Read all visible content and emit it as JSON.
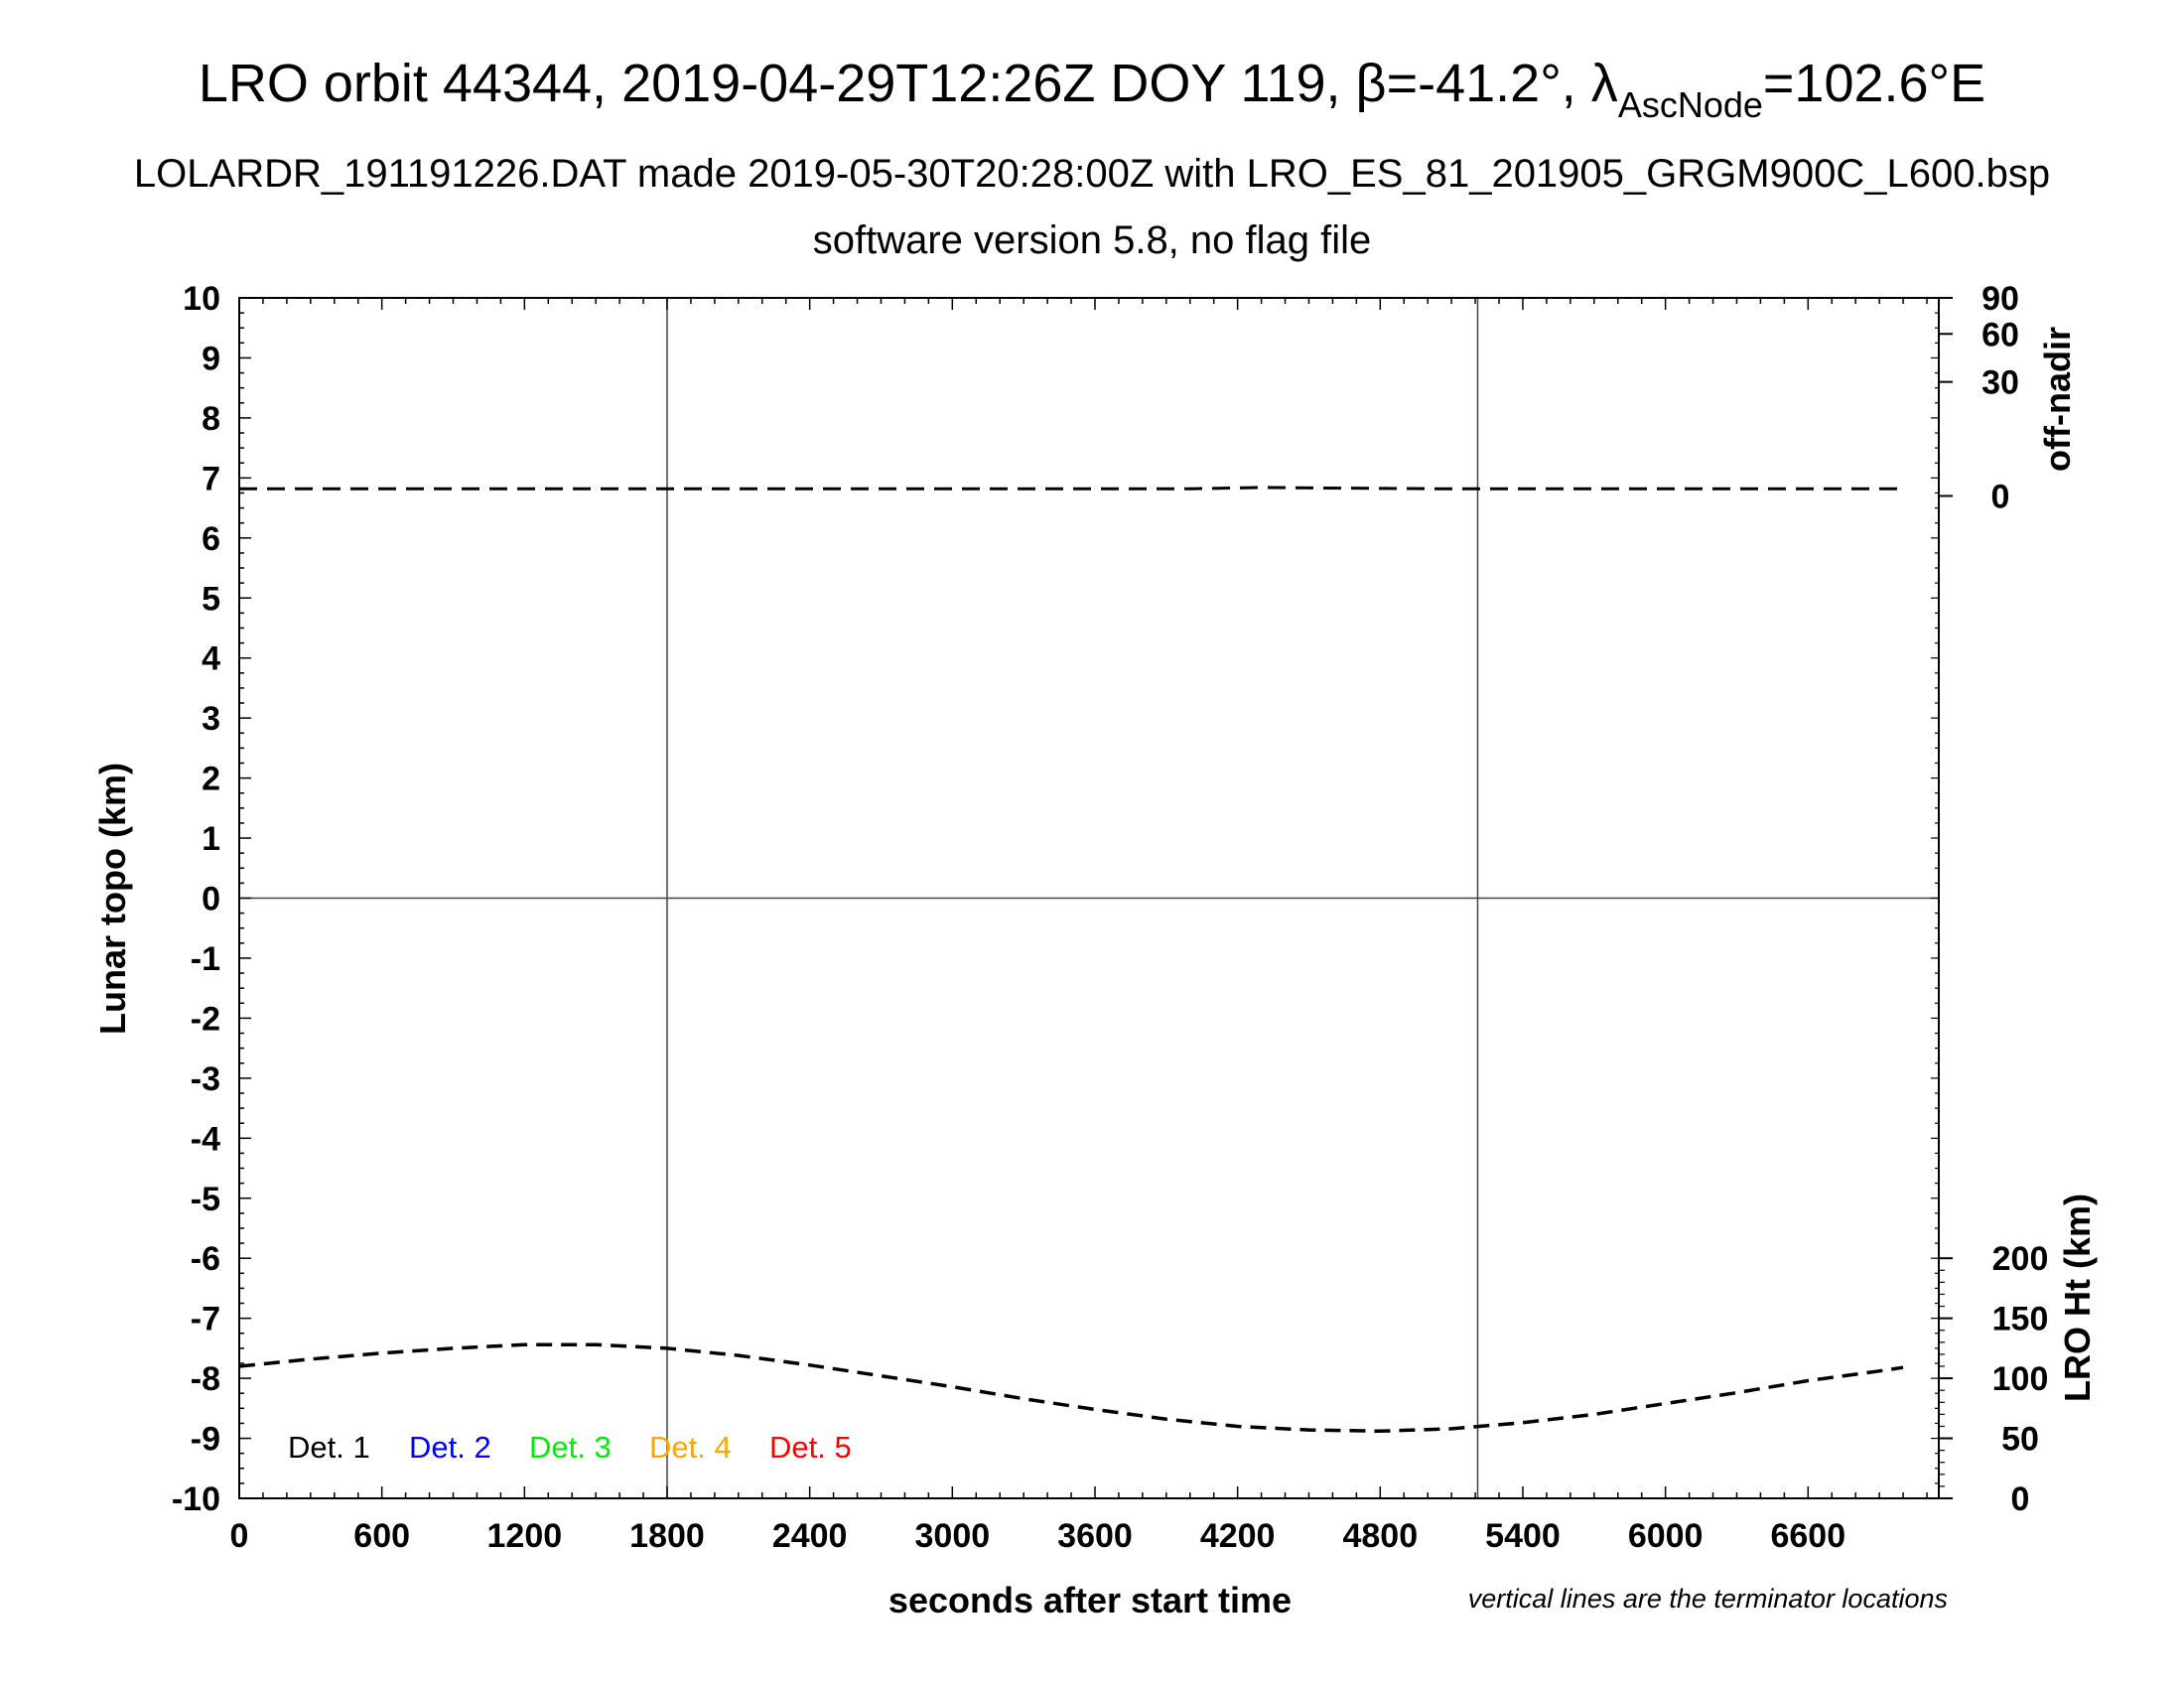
{
  "header": {
    "title_pre": "LRO orbit 44344, 2019-04-29T12:26Z DOY 119, β=-41.2°, λ",
    "title_sub": "AscNode",
    "title_post": "=102.6°E",
    "subtitle": "LOLARDR_191191226.DAT made 2019-05-30T20:28:00Z with LRO_ES_81_201905_GRGM900C_L600.bsp",
    "subtitle2": "software version 5.8, no flag file"
  },
  "chart_data": {
    "type": "line",
    "xlabel": "seconds after start time",
    "ylabel_left": "Lunar topo (km)",
    "ylabel_right_top": "off-nadir",
    "ylabel_right_bottom": "LRO Ht (km)",
    "note": "vertical lines are the terminator locations",
    "xlim": [
      0,
      7150
    ],
    "ylim_left": [
      -10,
      10
    ],
    "x_ticks": [
      "0",
      "600",
      "1200",
      "1800",
      "2400",
      "3000",
      "3600",
      "4200",
      "4800",
      "5400",
      "6000",
      "6600"
    ],
    "x_tick_values": [
      0,
      600,
      1200,
      1800,
      2400,
      3000,
      3600,
      4200,
      4800,
      5400,
      6000,
      6600
    ],
    "y_ticks_left": [
      "10",
      "9",
      "8",
      "7",
      "6",
      "5",
      "4",
      "3",
      "2",
      "1",
      "0",
      "-1",
      "-2",
      "-3",
      "-4",
      "-5",
      "-6",
      "-7",
      "-8",
      "-9",
      "-10"
    ],
    "y_tick_values_left": [
      10,
      9,
      8,
      7,
      6,
      5,
      4,
      3,
      2,
      1,
      0,
      -1,
      -2,
      -3,
      -4,
      -5,
      -6,
      -7,
      -8,
      -9,
      -10
    ],
    "right_top_axis": {
      "ticks": [
        "90",
        "60",
        "30",
        "0"
      ],
      "tick_topo": [
        10,
        9.4,
        8.6,
        6.7
      ]
    },
    "right_bottom_axis": {
      "ticks": [
        "200",
        "150",
        "100",
        "50",
        "0"
      ],
      "values": [
        200,
        150,
        100,
        50,
        0
      ],
      "range_km": [
        0,
        300
      ]
    },
    "terminator_lines_x": [
      1800,
      5210
    ],
    "grid_zero_line": true,
    "series": [
      {
        "name": "off-nadir",
        "style": "dashed",
        "x": [
          0,
          1000,
          2000,
          3000,
          4000,
          4300,
          5000,
          6000,
          7000
        ],
        "y_off_nadir_deg": [
          0.3,
          0.3,
          0.3,
          0.3,
          0.3,
          0.5,
          0.3,
          0.3,
          0.3
        ]
      },
      {
        "name": "LRO Ht (km)",
        "style": "dashed",
        "x": [
          0,
          300,
          600,
          900,
          1200,
          1500,
          1800,
          2100,
          2400,
          2700,
          3000,
          3300,
          3600,
          3900,
          4200,
          4500,
          4800,
          5100,
          5400,
          5700,
          6000,
          6300,
          6600,
          6900,
          7000
        ],
        "y_km": [
          110,
          116,
          121,
          125,
          128,
          128,
          125,
          119,
          111,
          102,
          93,
          83,
          74,
          66,
          60,
          57,
          56,
          58,
          63,
          70,
          79,
          88,
          98,
          106,
          109
        ]
      }
    ],
    "legend": {
      "placement": "bottom-left",
      "items": [
        {
          "label": "Det. 1",
          "color": "#000000"
        },
        {
          "label": "Det. 2",
          "color": "#0000ff"
        },
        {
          "label": "Det. 3",
          "color": "#00ee00"
        },
        {
          "label": "Det. 4",
          "color": "#ffa500"
        },
        {
          "label": "Det. 5",
          "color": "#ff0000"
        }
      ]
    }
  }
}
